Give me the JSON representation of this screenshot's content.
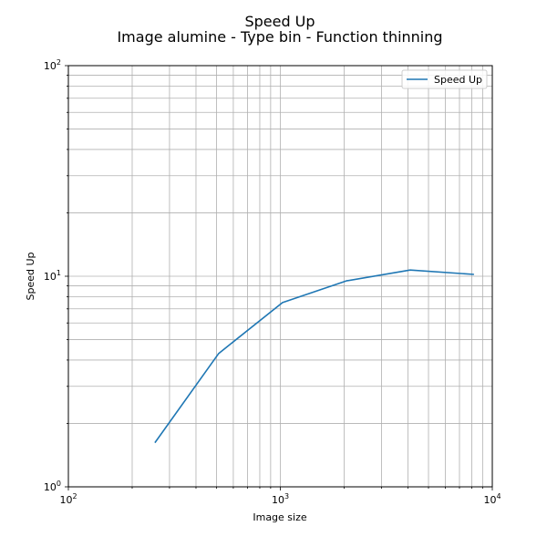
{
  "chart_data": {
    "type": "line",
    "title": "Speed Up",
    "subtitle": "Image alumine - Type bin - Function thinning",
    "xlabel": "Image size",
    "ylabel": "Speed Up",
    "xscale": "log",
    "yscale": "log",
    "xlim": [
      100,
      10000
    ],
    "ylim": [
      1,
      100
    ],
    "grid": "both-major-minor",
    "legend_position": "top-right",
    "x_major_ticks": [
      100,
      1000,
      10000
    ],
    "y_major_ticks": [
      1,
      10,
      100
    ],
    "x_tick_labels": [
      {
        "base": "10",
        "exp": "2"
      },
      {
        "base": "10",
        "exp": "3"
      },
      {
        "base": "10",
        "exp": "4"
      }
    ],
    "y_tick_labels": [
      {
        "base": "10",
        "exp": "0"
      },
      {
        "base": "10",
        "exp": "1"
      },
      {
        "base": "10",
        "exp": "2"
      }
    ],
    "colors": {
      "series": "#1f77b4",
      "grid": "#b0b0b0",
      "axes": "#000000"
    },
    "series": [
      {
        "name": "Speed Up",
        "x": [
          256,
          512,
          1024,
          2048,
          4096,
          8192
        ],
        "y": [
          1.62,
          4.3,
          7.5,
          9.5,
          10.7,
          10.2
        ]
      }
    ]
  }
}
